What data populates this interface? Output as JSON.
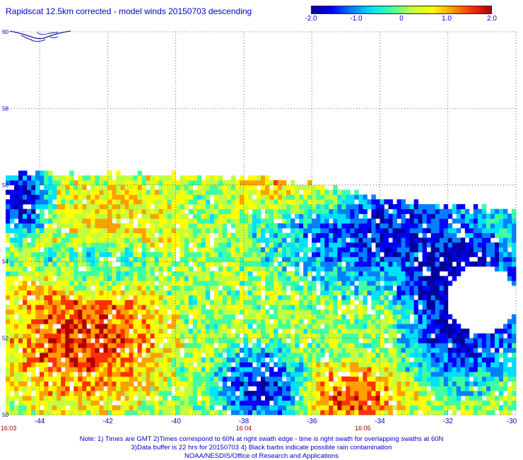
{
  "chart_data": {
    "type": "heatmap",
    "title": "Rapidscat 12.5km corrected - model winds 20150703 descending",
    "colorbar": {
      "ticks": [
        "-2.0",
        "-1.0",
        "0",
        "1.0",
        "2.0"
      ],
      "range": [
        -2.0,
        2.0
      ],
      "colors": [
        "#0000a0",
        "#0000ff",
        "#0080ff",
        "#00e0ff",
        "#40ffa0",
        "#c0ff40",
        "#ffff00",
        "#ffa000",
        "#ff3000",
        "#b00000"
      ]
    },
    "x_axis": {
      "range": [
        -45,
        -30
      ],
      "ticks": [
        -44,
        -42,
        -40,
        -38,
        -36,
        -34,
        -32,
        -30
      ],
      "tick_labels": [
        "-44",
        "-42",
        "-40",
        "-38",
        "-36",
        "-34",
        "-32",
        "-30"
      ]
    },
    "y_axis": {
      "range": [
        50,
        60
      ],
      "ticks": [
        50,
        52,
        54,
        56,
        58,
        60
      ],
      "tick_labels": [
        "50",
        "52",
        "54",
        "56",
        "58",
        "60"
      ]
    },
    "grid": true,
    "time_labels": [
      {
        "lon": -45,
        "text": "16:03"
      },
      {
        "lon": -38,
        "text": "16:04"
      },
      {
        "lon": -34.5,
        "text": "16:05"
      }
    ],
    "regions": [
      {
        "lon_min": -45,
        "lon_max": -40.5,
        "lat_min": 50.5,
        "lat_max": 53.5,
        "value": 1.4
      },
      {
        "lon_min": -43.5,
        "lon_max": -40,
        "lat_min": 54,
        "lat_max": 56.3,
        "value": 0.6
      },
      {
        "lon_min": -38,
        "lon_max": -35,
        "lat_min": 55.5,
        "lat_max": 56.3,
        "value": 0.9
      },
      {
        "lon_min": -37,
        "lon_max": -30,
        "lat_min": 53.5,
        "lat_max": 56,
        "value": -1.6
      },
      {
        "lon_min": -33,
        "lon_max": -30,
        "lat_min": 51,
        "lat_max": 54,
        "value": -1.9
      },
      {
        "lon_min": -38.5,
        "lon_max": -36.5,
        "lat_min": 50,
        "lat_max": 51.5,
        "value": -1.6
      },
      {
        "lon_min": -36,
        "lon_max": -33.5,
        "lat_min": 50,
        "lat_max": 51,
        "value": 1.3
      },
      {
        "lon_min": -45,
        "lon_max": -44,
        "lat_min": 55,
        "lat_max": 56.3,
        "value": -1.8
      },
      {
        "lon_min": -43.5,
        "lon_max": -41,
        "lat_min": 53.5,
        "lat_max": 54.3,
        "value": -1.0
      }
    ],
    "data_extent": {
      "north_edge": [
        [
          -45,
          56.35
        ],
        [
          -37.2,
          56.2
        ],
        [
          -35.3,
          55.9
        ],
        [
          -34.2,
          55.65
        ],
        [
          -32,
          55.5
        ],
        [
          -30,
          55.3
        ]
      ]
    }
  },
  "notes": [
    "Note: 1) Times are GMT 2)Times correspond to 60N at right swath edge - time is right swath for overlapping swaths at 60N",
    "3)Data buffer is 22 hrs for 20150703 4) Black barbs indicate possible rain contamination",
    "NOAA/NESDIS/Office of Research and Applications"
  ]
}
